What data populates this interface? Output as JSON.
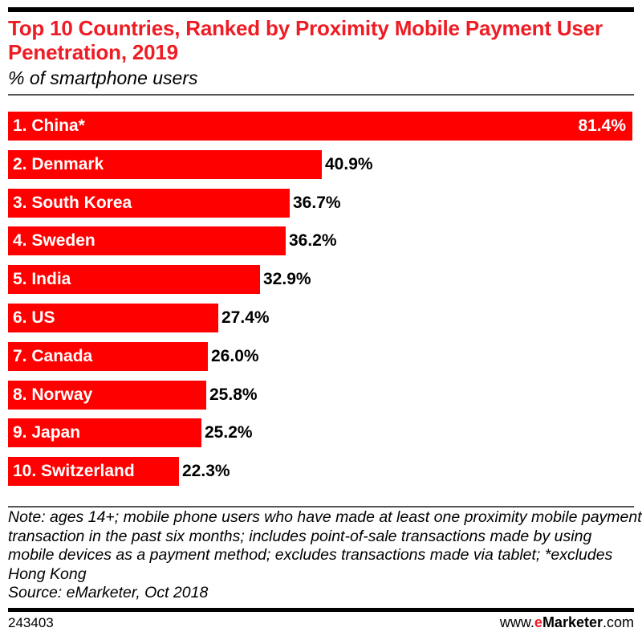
{
  "header": {
    "title": "Top 10 Countries, Ranked by Proximity Mobile Payment User Penetration, 2019",
    "subtitle": "% of smartphone users"
  },
  "footer": {
    "note": "Note: ages 14+; mobile phone users who have made at least one proximity mobile payment transaction in the past six months; includes point-of-sale transactions made by using mobile devices as a payment method; excludes transactions made via tablet; *excludes Hong Kong",
    "source": "Source: eMarketer, Oct 2018",
    "chart_id": "243403",
    "brand_prefix": "www.",
    "brand_e": "e",
    "brand_name": "Marketer",
    "brand_suffix": ".com"
  },
  "colors": {
    "bar": "#ff0000",
    "title": "#ee1c24"
  },
  "chart_data": {
    "type": "bar",
    "orientation": "horizontal",
    "title": "Top 10 Countries, Ranked by Proximity Mobile Payment User Penetration, 2019",
    "subtitle": "% of smartphone users",
    "xlabel": "",
    "ylabel": "",
    "unit": "%",
    "categories": [
      "1. China*",
      "2. Denmark",
      "3. South Korea",
      "4. Sweden",
      "5. India",
      "6. US",
      "7. Canada",
      "8. Norway",
      "9. Japan",
      "10. Switzerland"
    ],
    "values": [
      81.4,
      40.9,
      36.7,
      36.2,
      32.9,
      27.4,
      26.0,
      25.8,
      25.2,
      22.3
    ],
    "value_labels": [
      "81.4%",
      "40.9%",
      "36.7%",
      "36.2%",
      "32.9%",
      "27.4%",
      "26.0%",
      "25.8%",
      "25.2%",
      "22.3%"
    ],
    "grid": false,
    "legend": null
  }
}
